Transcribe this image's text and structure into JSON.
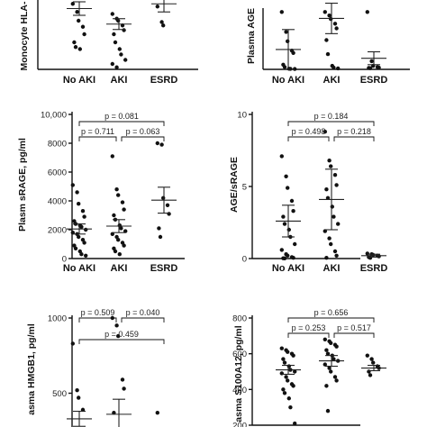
{
  "chart_data": [
    {
      "type": "scatter",
      "ylabel": "Monocyte HLA-",
      "categories": [
        "No AKI",
        "AKI",
        "ESRD"
      ],
      "ylim": [
        0,
        100
      ],
      "yticks": [],
      "brackets": [],
      "series": [
        {
          "category": "No AKI",
          "mean": 90,
          "sem": 10,
          "points": [
            97,
            85,
            72,
            63,
            52,
            40,
            33,
            30
          ]
        },
        {
          "category": "AKI",
          "mean": 67,
          "sem": 8,
          "points": [
            82,
            75,
            72,
            65,
            58,
            52,
            40,
            30,
            22,
            14,
            8,
            3
          ]
        },
        {
          "category": "ESRD",
          "mean": 97,
          "sem": 12,
          "points": [
            93,
            70,
            65
          ]
        }
      ]
    },
    {
      "type": "scatter",
      "ylabel": "Plasma AGE",
      "categories": [
        "No AKI",
        "AKI",
        "ESRD"
      ],
      "ylim": [
        0,
        5000
      ],
      "yticks": [],
      "brackets": [],
      "series": [
        {
          "category": "No AKI",
          "mean": 1700,
          "sem": 1700,
          "points": [
            4900,
            3200,
            2400,
            1600,
            1400,
            400,
            200,
            50,
            40,
            30
          ]
        },
        {
          "category": "AKI",
          "mean": 4350,
          "sem": 1300,
          "points": [
            4900,
            4600,
            4300,
            3900,
            3500,
            2500,
            1300,
            300,
            150,
            80
          ]
        },
        {
          "category": "ESRD",
          "mean": 950,
          "sem": 550,
          "points": [
            4900,
            700,
            300,
            200,
            150,
            120,
            100
          ]
        }
      ]
    },
    {
      "type": "scatter",
      "ylabel": "Plasm sRAGE, pg/ml",
      "categories": [
        "No AKI",
        "AKI",
        "ESRD"
      ],
      "ylim": [
        0,
        10000
      ],
      "yticks": [
        "0",
        "2000",
        "4000",
        "6000",
        "8000",
        "10,000"
      ],
      "brackets": [
        {
          "from": 0,
          "to": 2,
          "text": "p = 0.081"
        },
        {
          "from": 0,
          "to": 1,
          "text": "p = 0.711"
        },
        {
          "from": 1,
          "to": 2,
          "text": "p = 0.063"
        }
      ],
      "series": [
        {
          "category": "No AKI",
          "mean": 2050,
          "sem": 350,
          "points": [
            5100,
            4600,
            3800,
            3300,
            2900,
            2600,
            2400,
            2300,
            2200,
            2000,
            1800,
            1700,
            1500,
            1300,
            1100,
            900,
            700,
            500,
            300,
            200
          ]
        },
        {
          "category": "AKI",
          "mean": 2250,
          "sem": 450,
          "points": [
            7100,
            4800,
            4400,
            3900,
            3400,
            3000,
            2700,
            2300,
            2100,
            1900,
            1700,
            1500,
            1300,
            1100,
            900,
            700,
            500,
            300
          ]
        },
        {
          "category": "ESRD",
          "mean": 4050,
          "sem": 900,
          "points": [
            8000,
            7900,
            4200,
            3700,
            3100,
            2100,
            1500
          ]
        }
      ]
    },
    {
      "type": "scatter",
      "ylabel": "AGE/sRAGE",
      "categories": [
        "No AKI",
        "AKI",
        "ESRD"
      ],
      "ylim": [
        0,
        10
      ],
      "yticks": [
        "0",
        "5",
        "10"
      ],
      "brackets": [
        {
          "from": 0,
          "to": 2,
          "text": "p = 0.184"
        },
        {
          "from": 0,
          "to": 1,
          "text": "p = 0.498"
        },
        {
          "from": 1,
          "to": 2,
          "text": "p = 0.218"
        }
      ],
      "series": [
        {
          "category": "No AKI",
          "mean": 2.6,
          "sem": 1.1,
          "points": [
            7.1,
            5.7,
            4.9,
            4.0,
            3.3,
            2.9,
            2.4,
            2.0,
            1.5,
            1.0,
            0.6,
            0.3,
            0.2,
            0.1,
            0.05,
            0.02,
            0.01
          ]
        },
        {
          "category": "AKI",
          "mean": 4.1,
          "sem": 2.1,
          "points": [
            8.8,
            6.8,
            6.4,
            5.8,
            5.1,
            4.8,
            4.2,
            3.6,
            2.9,
            2.4,
            1.9,
            1.4,
            1.0,
            0.5,
            0.2,
            0.05
          ]
        },
        {
          "category": "ESRD",
          "mean": 0.2,
          "sem": 0.1,
          "points": [
            0.35,
            0.3,
            0.25,
            0.2,
            0.15,
            0.1,
            0.05
          ]
        }
      ]
    },
    {
      "type": "scatter",
      "ylabel": "asma HMGB1, pg/ml",
      "categories": [
        "No AKI",
        "AKI",
        "ESRD"
      ],
      "ylim": [
        0,
        1000
      ],
      "yticks": [
        "500",
        "1000"
      ],
      "brackets": [
        {
          "from": 0,
          "to": 1,
          "text": "p = 0.509"
        },
        {
          "from": 1,
          "to": 2,
          "text": "p = 0.040"
        },
        {
          "from": 0,
          "to": 2,
          "text": "p = 0.459"
        }
      ],
      "series": [
        {
          "category": "No AKI",
          "mean": 330,
          "sem": 50,
          "points": [
            830,
            520,
            470,
            390
          ]
        },
        {
          "category": "AKI",
          "mean": 360,
          "sem": 100,
          "points": [
            1000,
            950,
            880,
            590,
            530,
            370
          ]
        },
        {
          "category": "ESRD",
          "mean": null,
          "sem": null,
          "points": [
            370
          ]
        }
      ]
    },
    {
      "type": "scatter",
      "ylabel": "asma S100A12, pg/ml",
      "categories": [
        "No AKI",
        "AKI",
        "ESRD"
      ],
      "ylim": [
        200,
        800
      ],
      "yticks": [
        "200",
        "400",
        "600",
        "800"
      ],
      "brackets": [
        {
          "from": 0,
          "to": 2,
          "text": "p = 0.656"
        },
        {
          "from": 0,
          "to": 1,
          "text": "p = 0.253"
        },
        {
          "from": 1,
          "to": 2,
          "text": "p = 0.517"
        }
      ],
      "series": [
        {
          "category": "No AKI",
          "mean": 510,
          "sem": 25,
          "points": [
            630,
            620,
            610,
            600,
            590,
            570,
            550,
            530,
            510,
            500,
            490,
            470,
            450,
            430,
            420,
            400,
            380,
            350,
            300,
            210
          ]
        },
        {
          "category": "AKI",
          "mean": 560,
          "sem": 30,
          "points": [
            680,
            670,
            660,
            650,
            640,
            620,
            600,
            590,
            570,
            560,
            540,
            520,
            500,
            470,
            450,
            420,
            280
          ]
        },
        {
          "category": "ESRD",
          "mean": 520,
          "sem": 15,
          "points": [
            590,
            570,
            550,
            530,
            520,
            500,
            480
          ]
        }
      ]
    }
  ]
}
